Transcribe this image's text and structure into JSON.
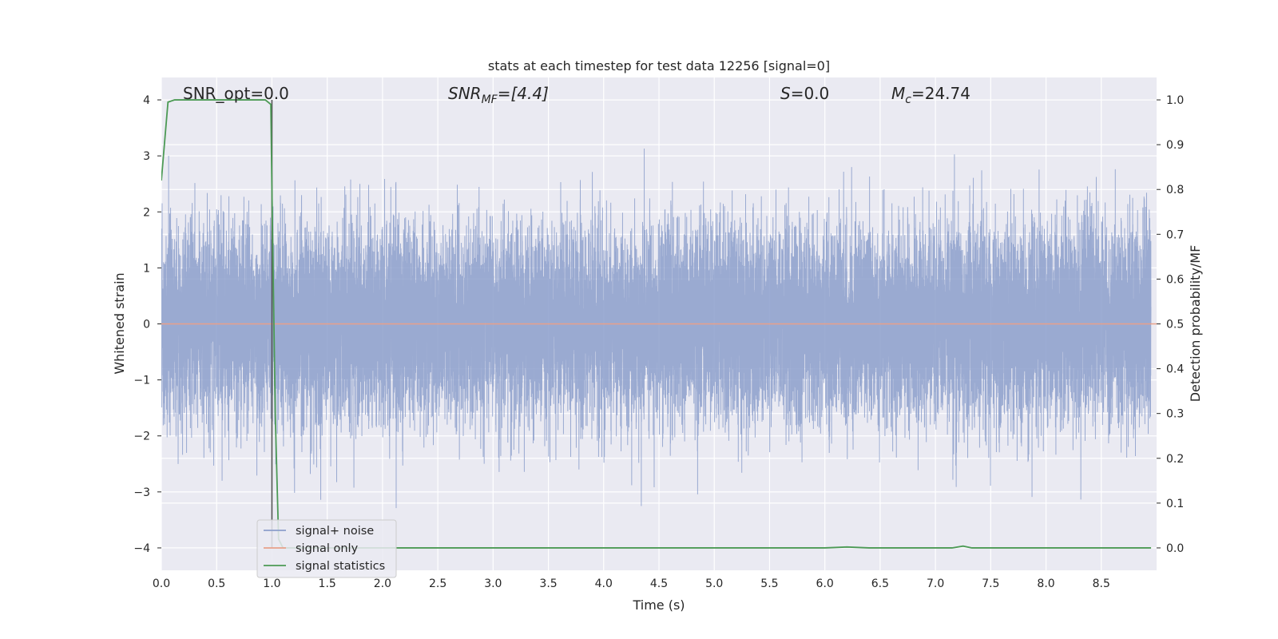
{
  "chart_data": {
    "type": "line",
    "title": "stats at each timestep for test data 12256 [signal=0]",
    "xlabel": "Time (s)",
    "ylabel": "Whitened strain",
    "y2label": "Detection probability/MF",
    "xlim": [
      0.0,
      9.0
    ],
    "ylim": [
      -4.4,
      4.4
    ],
    "y2lim": [
      -0.05,
      1.05
    ],
    "xticks": [
      0.0,
      0.5,
      1.0,
      1.5,
      2.0,
      2.5,
      3.0,
      3.5,
      4.0,
      4.5,
      5.0,
      5.5,
      6.0,
      6.5,
      7.0,
      7.5,
      8.0,
      8.5
    ],
    "xtick_labels": [
      "0.0",
      "0.5",
      "1.0",
      "1.5",
      "2.0",
      "2.5",
      "3.0",
      "3.5",
      "4.0",
      "4.5",
      "5.0",
      "5.5",
      "6.0",
      "6.5",
      "7.0",
      "7.5",
      "8.0",
      "8.5"
    ],
    "yticks": [
      -4,
      -3,
      -2,
      -1,
      0,
      1,
      2,
      3,
      4
    ],
    "ytick_labels": [
      "−4",
      "−3",
      "−2",
      "−1",
      "0",
      "1",
      "2",
      "3",
      "4"
    ],
    "y2ticks": [
      0.0,
      0.1,
      0.2,
      0.3,
      0.4,
      0.5,
      0.6,
      0.7,
      0.8,
      0.9,
      1.0
    ],
    "y2tick_labels": [
      "0.0",
      "0.1",
      "0.2",
      "0.3",
      "0.4",
      "0.5",
      "0.6",
      "0.7",
      "0.8",
      "0.9",
      "1.0"
    ],
    "grid": true,
    "legend_position": "lower-left",
    "annotations": {
      "snr_opt": "SNR_opt=0.0",
      "snr_mf_main": "SNR",
      "snr_mf_sub": "MF",
      "snr_mf_rest": "=[4.4]",
      "s_main": "S",
      "s_rest": "=0.0",
      "mc_main": "M",
      "mc_sub": "c",
      "mc_rest": "=24.74"
    },
    "vline_x": 1.0,
    "series": [
      {
        "name": "signal+ noise",
        "color": "#8c9fcb",
        "kind": "noise",
        "sample_rate": 2048,
        "std": 0.85,
        "seed": 12256
      },
      {
        "name": "signal only",
        "color": "#e8a08a",
        "x": [
          0.0,
          9.0
        ],
        "y": [
          0.0,
          0.0
        ]
      },
      {
        "name": "signal statistics",
        "color": "#4c9a55",
        "axis": "y2",
        "x": [
          0.0,
          0.06,
          0.12,
          0.5,
          0.94,
          0.99,
          1.0,
          1.03,
          1.06,
          1.1,
          1.5,
          2.0,
          3.0,
          4.0,
          5.0,
          6.0,
          6.2,
          6.4,
          7.0,
          7.15,
          7.25,
          7.33,
          8.0,
          8.95
        ],
        "y": [
          0.82,
          0.995,
          1.0,
          1.0,
          1.0,
          0.99,
          0.8,
          0.3,
          0.02,
          0.0,
          0.0,
          0.0,
          0.0,
          0.0,
          0.0,
          0.0,
          0.002,
          0.0,
          0.0,
          0.0,
          0.004,
          0.0,
          0.0,
          0.0
        ]
      }
    ]
  }
}
